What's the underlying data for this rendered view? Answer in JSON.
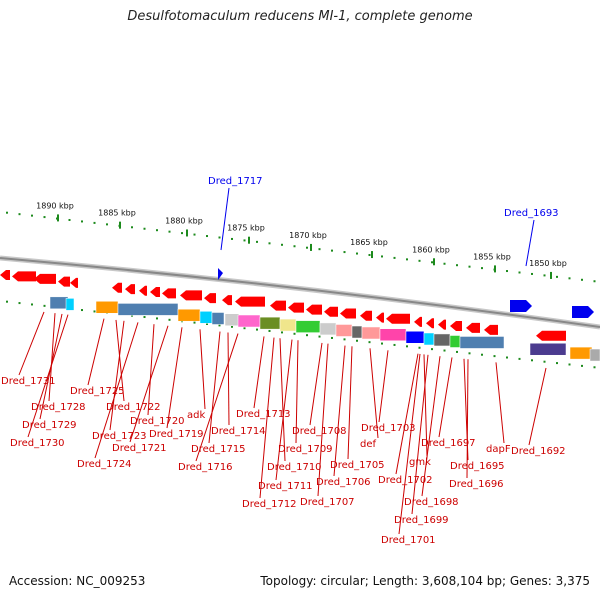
{
  "header": {
    "title": "Desulfotomaculum reducens MI-1, complete genome"
  },
  "footer": {
    "accession": "Accession: NC_009253",
    "summary": "Topology: circular; Length: 3,608,104 bp; Genes: 3,375"
  },
  "scale": {
    "ticks": [
      {
        "label": "1890 kbp"
      },
      {
        "label": "1885 kbp"
      },
      {
        "label": "1880 kbp"
      },
      {
        "label": "1875 kbp"
      },
      {
        "label": "1870 kbp"
      },
      {
        "label": "1865 kbp"
      },
      {
        "label": "1860 kbp"
      },
      {
        "label": "1855 kbp"
      },
      {
        "label": "1850 kbp"
      }
    ]
  },
  "highlighted_genes": [
    {
      "label": "Dred_1717",
      "color": "#0000ee"
    },
    {
      "label": "Dred_1693",
      "color": "#0000ee"
    }
  ],
  "gene_labels": [
    {
      "label": "Dred_1731"
    },
    {
      "label": "Dred_1728"
    },
    {
      "label": "Dred_1729"
    },
    {
      "label": "Dred_1730"
    },
    {
      "label": "Dred_1725"
    },
    {
      "label": "Dred_1722"
    },
    {
      "label": "Dred_1723"
    },
    {
      "label": "Dred_1724"
    },
    {
      "label": "Dred_1720"
    },
    {
      "label": "Dred_1721"
    },
    {
      "label": "Dred_1719"
    },
    {
      "label": "adk"
    },
    {
      "label": "Dred_1715"
    },
    {
      "label": "Dred_1716"
    },
    {
      "label": "Dred_1714"
    },
    {
      "label": "Dred_1713"
    },
    {
      "label": "Dred_1710"
    },
    {
      "label": "Dred_1711"
    },
    {
      "label": "Dred_1712"
    },
    {
      "label": "Dred_1709"
    },
    {
      "label": "Dred_1708"
    },
    {
      "label": "Dred_1707"
    },
    {
      "label": "Dred_1706"
    },
    {
      "label": "Dred_1705"
    },
    {
      "label": "def"
    },
    {
      "label": "Dred_1703"
    },
    {
      "label": "Dred_1702"
    },
    {
      "label": "gmk"
    },
    {
      "label": "Dred_1698"
    },
    {
      "label": "Dred_1699"
    },
    {
      "label": "Dred_1701"
    },
    {
      "label": "Dred_1697"
    },
    {
      "label": "Dred_1696"
    },
    {
      "label": "Dred_1695"
    },
    {
      "label": "dapF"
    },
    {
      "label": "Dred_1692"
    }
  ],
  "colors": {
    "gene_red": "#ff0000",
    "label_red": "#cc0000",
    "tick_green": "#1c8a1c",
    "backbone": "#888888",
    "highlight_blue": "#0000ee"
  }
}
